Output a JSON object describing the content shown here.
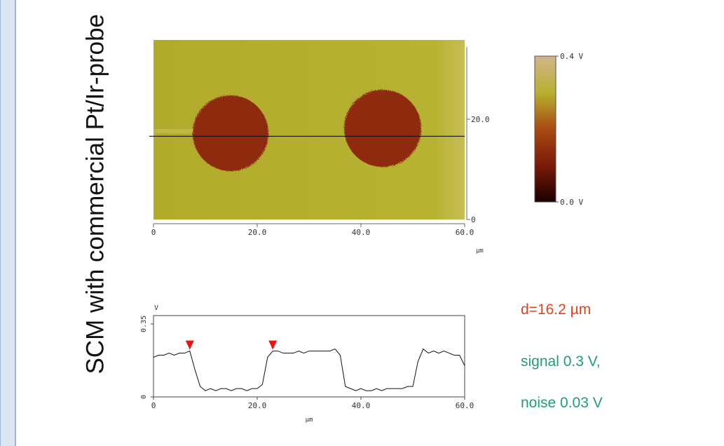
{
  "side_title": "SCM with commercial Pt/Ir-probe",
  "chart_data": [
    {
      "type": "map",
      "xlim": [
        0,
        60
      ],
      "xticks": [
        0,
        {
          "value": 20,
          "label": "20.0"
        },
        {
          "value": 40,
          "label": "40.0"
        },
        {
          "value": 60,
          "label": "60.0"
        }
      ],
      "ylim": [
        0,
        35.8
      ],
      "yticks": [
        0,
        {
          "value": 20,
          "label": "20.0"
        }
      ],
      "x_unit": "µm",
      "scan_line_y": 16.6,
      "colorbar": {
        "lim": [
          0,
          0.4
        ],
        "ticks": [
          {
            "value": 0,
            "label": "0.0 V"
          },
          {
            "value": 0.4,
            "label": "0.4 V"
          }
        ],
        "colors": [
          "#1a0000",
          "#7a1a08",
          "#a84a12",
          "#b8b030",
          "#d4b48c"
        ]
      }
    },
    {
      "type": "line",
      "y_unit": "V",
      "x_unit": "µm",
      "xlim": [
        0,
        60
      ],
      "xticks": [
        0,
        {
          "value": 20,
          "label": "20.0"
        },
        {
          "value": 40,
          "label": "40.0"
        },
        {
          "value": 60,
          "label": "60.0"
        }
      ],
      "ylim": [
        0,
        0.39
      ],
      "yticks": [
        0,
        0.35
      ],
      "x": [
        0,
        1,
        2,
        3,
        4,
        5,
        6,
        7,
        8,
        9,
        10,
        11,
        12,
        13,
        14,
        15,
        16,
        17,
        18,
        19,
        20,
        21,
        22,
        23,
        24,
        25,
        26,
        27,
        28,
        29,
        30,
        31,
        32,
        33,
        34,
        35,
        36,
        37,
        38,
        39,
        40,
        41,
        42,
        43,
        44,
        45,
        46,
        47,
        48,
        49,
        50,
        51,
        52,
        53,
        54,
        55,
        56,
        57,
        58,
        59,
        60
      ],
      "series": [
        {
          "color": "#111111",
          "values": [
            0.19,
            0.2,
            0.2,
            0.21,
            0.2,
            0.21,
            0.21,
            0.22,
            0.13,
            0.05,
            0.03,
            0.04,
            0.03,
            0.04,
            0.04,
            0.03,
            0.04,
            0.04,
            0.03,
            0.04,
            0.04,
            0.06,
            0.19,
            0.22,
            0.22,
            0.21,
            0.21,
            0.21,
            0.22,
            0.21,
            0.22,
            0.22,
            0.22,
            0.22,
            0.22,
            0.23,
            0.2,
            0.05,
            0.04,
            0.03,
            0.04,
            0.03,
            0.03,
            0.04,
            0.03,
            0.04,
            0.04,
            0.04,
            0.04,
            0.05,
            0.05,
            0.17,
            0.23,
            0.21,
            0.22,
            0.21,
            0.22,
            0.21,
            0.2,
            0.2,
            0.15
          ]
        }
      ],
      "markers": [
        7,
        23
      ],
      "marker_color": "#ee1111"
    }
  ],
  "annotations": [
    {
      "text": "d=16.2 µm",
      "color": "#e8401a"
    },
    {
      "text": "signal 0.3 V,",
      "color": "#1f9e72"
    },
    {
      "text": "noise 0.03 V",
      "color": "#1f9e72"
    }
  ]
}
